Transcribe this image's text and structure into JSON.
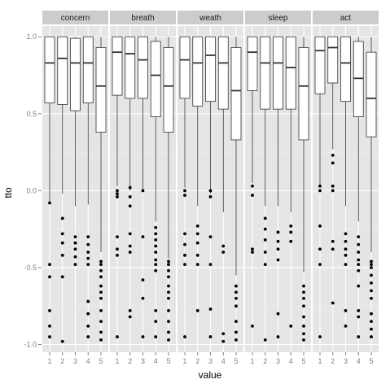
{
  "chart_data": {
    "type": "boxplot",
    "xlabel": "value",
    "ylabel": "tto",
    "ylim": [
      -1.05,
      1.07
    ],
    "y_ticks": [
      "1.0",
      "0.5",
      "0.0",
      "-0.5",
      "-1.0"
    ],
    "y_tick_values": [
      1.0,
      0.5,
      0.0,
      -0.5,
      -1.0
    ],
    "x_categories": [
      "1",
      "2",
      "3",
      "4",
      "5"
    ],
    "grid": true,
    "facets": [
      {
        "name": "concern",
        "boxes": [
          {
            "x": "1",
            "q1": 0.57,
            "median": 0.83,
            "q3": 1.0,
            "whisker_low": -0.07,
            "whisker_high": 1.0,
            "outliers": [
              -0.08,
              -0.48,
              -0.56,
              -0.78,
              -0.88,
              -0.95
            ]
          },
          {
            "x": "2",
            "q1": 0.56,
            "median": 0.86,
            "q3": 1.0,
            "whisker_low": -0.02,
            "whisker_high": 1.0,
            "outliers": [
              -0.18,
              -0.28,
              -0.34,
              -0.42,
              -0.56,
              -0.98
            ]
          },
          {
            "x": "3",
            "q1": 0.52,
            "median": 0.83,
            "q3": 0.99,
            "whisker_low": -0.1,
            "whisker_high": 1.0,
            "outliers": [
              -0.3,
              -0.34,
              -0.38,
              -0.43,
              -0.48
            ]
          },
          {
            "x": "4",
            "q1": 0.57,
            "median": 0.83,
            "q3": 1.0,
            "whisker_low": -0.09,
            "whisker_high": 1.0,
            "outliers": [
              -0.3,
              -0.35,
              -0.4,
              -0.44,
              -0.48,
              -0.72,
              -0.8,
              -0.88,
              -0.95
            ]
          },
          {
            "x": "5",
            "q1": 0.38,
            "median": 0.68,
            "q3": 0.93,
            "whisker_low": -0.4,
            "whisker_high": 1.0,
            "outliers": [
              -0.46,
              -0.48,
              -0.52,
              -0.56,
              -0.62,
              -0.66,
              -0.7,
              -0.78,
              -0.85,
              -0.92,
              -0.97
            ]
          }
        ]
      },
      {
        "name": "breath",
        "boxes": [
          {
            "x": "1",
            "q1": 0.62,
            "median": 0.9,
            "q3": 1.0,
            "whisker_low": 0.03,
            "whisker_high": 1.0,
            "outliers": [
              0.0,
              -0.02,
              -0.04,
              -0.3,
              -0.38,
              -0.42,
              -0.95
            ]
          },
          {
            "x": "2",
            "q1": 0.6,
            "median": 0.89,
            "q3": 1.0,
            "whisker_low": 0.0,
            "whisker_high": 1.0,
            "outliers": [
              0.02,
              -0.04,
              -0.1,
              -0.28,
              -0.36,
              -0.4,
              -0.78,
              -0.82
            ]
          },
          {
            "x": "3",
            "q1": 0.6,
            "median": 0.85,
            "q3": 1.0,
            "whisker_low": 0.0,
            "whisker_high": 1.0,
            "outliers": [
              0.0,
              -0.3,
              -0.58,
              -0.7,
              -0.95
            ]
          },
          {
            "x": "4",
            "q1": 0.48,
            "median": 0.75,
            "q3": 0.97,
            "whisker_low": -0.2,
            "whisker_high": 1.0,
            "outliers": [
              -0.24,
              -0.28,
              -0.32,
              -0.36,
              -0.4,
              -0.45,
              -0.48,
              -0.52,
              -0.78,
              -0.85,
              -0.95
            ]
          },
          {
            "x": "5",
            "q1": 0.38,
            "median": 0.68,
            "q3": 0.93,
            "whisker_low": -0.44,
            "whisker_high": 1.0,
            "outliers": [
              -0.46,
              -0.48,
              -0.52,
              -0.56,
              -0.62,
              -0.66,
              -0.7,
              -0.78,
              -0.85,
              -0.92,
              -0.97
            ]
          }
        ]
      },
      {
        "name": "weath",
        "boxes": [
          {
            "x": "1",
            "q1": 0.6,
            "median": 0.85,
            "q3": 1.0,
            "whisker_low": 0.02,
            "whisker_high": 1.0,
            "outliers": [
              0.0,
              -0.03,
              -0.28,
              -0.35,
              -0.42,
              -0.48,
              -0.95
            ]
          },
          {
            "x": "2",
            "q1": 0.55,
            "median": 0.83,
            "q3": 1.0,
            "whisker_low": -0.1,
            "whisker_high": 1.0,
            "outliers": [
              -0.23,
              -0.28,
              -0.34,
              -0.42,
              -0.48,
              -0.78
            ]
          },
          {
            "x": "3",
            "q1": 0.58,
            "median": 0.88,
            "q3": 1.0,
            "whisker_low": -0.02,
            "whisker_high": 1.0,
            "outliers": [
              0.0,
              -0.04,
              -0.3,
              -0.48,
              -0.77,
              -0.95
            ]
          },
          {
            "x": "4",
            "q1": 0.53,
            "median": 0.83,
            "q3": 1.0,
            "whisker_low": -0.14,
            "whisker_high": 1.0,
            "outliers": [
              -0.36,
              -0.4,
              -0.93,
              -0.98
            ]
          },
          {
            "x": "5",
            "q1": 0.33,
            "median": 0.65,
            "q3": 0.93,
            "whisker_low": -0.55,
            "whisker_high": 1.0,
            "outliers": [
              -0.62,
              -0.66,
              -0.7,
              -0.75,
              -0.85,
              -0.92,
              -0.97
            ]
          }
        ]
      },
      {
        "name": "sleep",
        "boxes": [
          {
            "x": "1",
            "q1": 0.65,
            "median": 0.9,
            "q3": 1.0,
            "whisker_low": 0.05,
            "whisker_high": 1.0,
            "outliers": [
              0.03,
              -0.03,
              -0.38,
              -0.4,
              -0.88
            ]
          },
          {
            "x": "2",
            "q1": 0.53,
            "median": 0.83,
            "q3": 1.0,
            "whisker_low": -0.1,
            "whisker_high": 1.0,
            "outliers": [
              -0.18,
              -0.25,
              -0.32,
              -0.4,
              -0.48,
              -0.97
            ]
          },
          {
            "x": "3",
            "q1": 0.53,
            "median": 0.83,
            "q3": 1.0,
            "whisker_low": -0.1,
            "whisker_high": 1.0,
            "outliers": [
              -0.27,
              -0.33,
              -0.38,
              -0.45,
              -0.8,
              -0.95
            ]
          },
          {
            "x": "4",
            "q1": 0.53,
            "median": 0.8,
            "q3": 1.0,
            "whisker_low": -0.14,
            "whisker_high": 1.0,
            "outliers": [
              -0.23,
              -0.27,
              -0.33,
              -0.88
            ]
          },
          {
            "x": "5",
            "q1": 0.33,
            "median": 0.68,
            "q3": 0.93,
            "whisker_low": -0.53,
            "whisker_high": 1.0,
            "outliers": [
              -0.62,
              -0.66,
              -0.7,
              -0.75,
              -0.82,
              -0.88,
              -0.93,
              -0.97
            ]
          }
        ]
      },
      {
        "name": "act",
        "boxes": [
          {
            "x": "1",
            "q1": 0.63,
            "median": 0.91,
            "q3": 1.0,
            "whisker_low": 0.04,
            "whisker_high": 1.0,
            "outliers": [
              0.03,
              0.0,
              -0.23,
              -0.38,
              -0.48,
              -0.95
            ]
          },
          {
            "x": "2",
            "q1": 0.7,
            "median": 0.93,
            "q3": 1.0,
            "whisker_low": 0.27,
            "whisker_high": 1.0,
            "outliers": [
              0.23,
              0.18,
              0.03,
              0.0,
              -0.33,
              -0.38,
              -0.73
            ]
          },
          {
            "x": "3",
            "q1": 0.58,
            "median": 0.83,
            "q3": 1.0,
            "whisker_low": -0.1,
            "whisker_high": 1.0,
            "outliers": [
              -0.28,
              -0.33,
              -0.38,
              -0.42,
              -0.48,
              -0.78,
              -0.88
            ]
          },
          {
            "x": "4",
            "q1": 0.48,
            "median": 0.73,
            "q3": 0.97,
            "whisker_low": -0.2,
            "whisker_high": 1.0,
            "outliers": [
              -0.3,
              -0.35,
              -0.4,
              -0.45,
              -0.48,
              -0.52,
              -0.62,
              -0.78,
              -0.82,
              -0.95
            ]
          },
          {
            "x": "5",
            "q1": 0.35,
            "median": 0.6,
            "q3": 0.9,
            "whisker_low": -0.4,
            "whisker_high": 1.0,
            "outliers": [
              -0.46,
              -0.48,
              -0.5,
              -0.55,
              -0.6,
              -0.65,
              -0.7,
              -0.8,
              -0.85,
              -0.9,
              -0.95
            ]
          }
        ]
      }
    ]
  },
  "colors": {
    "panel_background": "#e5e5e5",
    "strip_background": "#cccccc",
    "grid_major": "#ffffff",
    "grid_minor": "#f2f2f2",
    "box_fill": "#ffffff",
    "box_stroke": "#333333",
    "point": "#000000",
    "tick_label": "#7f7f7f",
    "strip_text": "#1a1a1a"
  }
}
